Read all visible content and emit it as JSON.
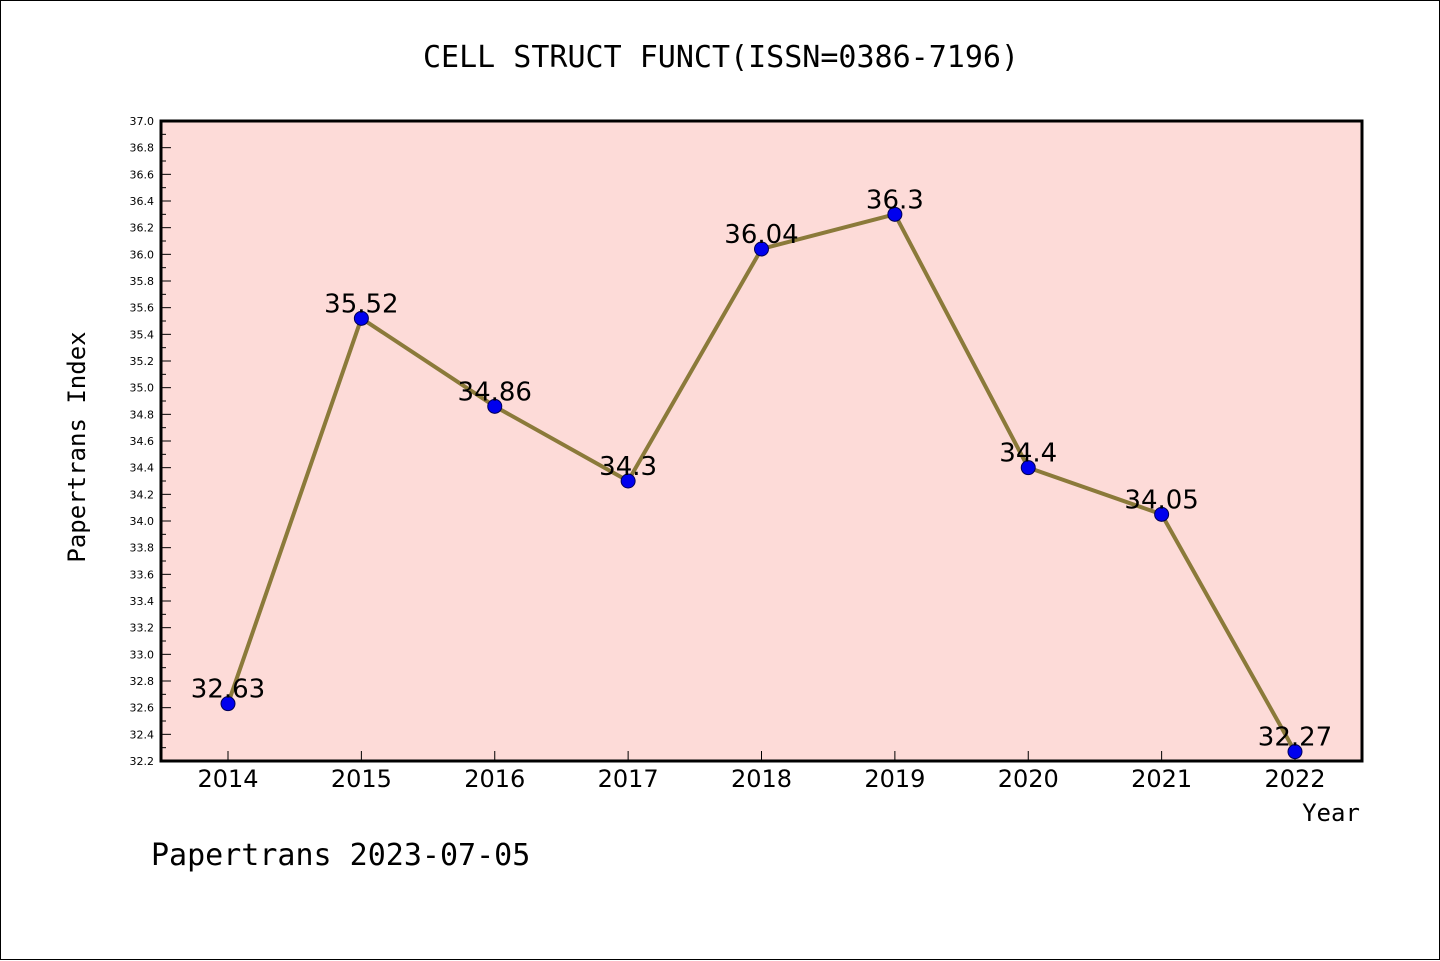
{
  "chart_data": {
    "type": "line",
    "title": "CELL STRUCT FUNCT(ISSN=0386-7196)",
    "xlabel": "Year",
    "ylabel": "Papertrans Index",
    "categories": [
      "2014",
      "2015",
      "2016",
      "2017",
      "2018",
      "2019",
      "2020",
      "2021",
      "2022"
    ],
    "series": [
      {
        "values": [
          32.63,
          35.52,
          34.86,
          34.3,
          36.04,
          36.3,
          34.4,
          34.05,
          32.27
        ],
        "labels": [
          "32.63",
          "35.52",
          "34.86",
          "34.3",
          "36.04",
          "36.3",
          "34.4",
          "34.05",
          "32.27"
        ]
      }
    ],
    "ylim": [
      32.2,
      37.0
    ],
    "yticks": [
      "32.2",
      "32.4",
      "32.6",
      "32.8",
      "33.0",
      "33.2",
      "33.4",
      "33.6",
      "33.8",
      "34.0",
      "34.2",
      "34.4",
      "34.6",
      "34.8",
      "35.0",
      "35.2",
      "35.4",
      "35.6",
      "35.8",
      "36.0",
      "36.2",
      "36.4",
      "36.6",
      "36.8",
      "37.0"
    ],
    "grid": false,
    "colors": {
      "plot_background": "#fddbd8",
      "line": "#8b7a3a",
      "marker": "#0000ee",
      "marker_edge": "#000055"
    }
  },
  "footer": "Papertrans 2023-07-05"
}
